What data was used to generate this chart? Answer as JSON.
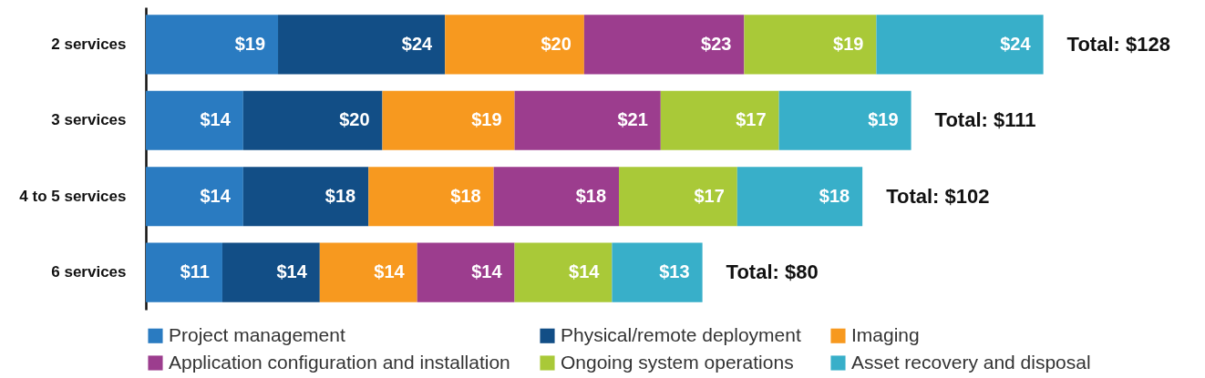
{
  "chart_data": {
    "type": "bar",
    "orientation": "horizontal",
    "stacked": true,
    "legend": "bottom",
    "categories": [
      "2 services",
      "3 services",
      "4 to 5 services",
      "6 services"
    ],
    "series": [
      {
        "name": "Project management",
        "color": "#2a7bc1",
        "values": [
          19,
          14,
          14,
          11
        ],
        "value_labels": [
          "$19",
          "$14",
          "$14",
          "$11"
        ]
      },
      {
        "name": "Physical/remote deployment",
        "color": "#124e86",
        "values": [
          24,
          20,
          18,
          14
        ],
        "value_labels": [
          "$24",
          "$20",
          "$18",
          "$14"
        ]
      },
      {
        "name": "Imaging",
        "color": "#f7991f",
        "values": [
          20,
          19,
          18,
          14
        ],
        "value_labels": [
          "$20",
          "$19",
          "$18",
          "$14"
        ]
      },
      {
        "name": "Application configuration and installation",
        "color": "#9c3d8e",
        "values": [
          23,
          21,
          18,
          14
        ],
        "value_labels": [
          "$23",
          "$21",
          "$18",
          "$14"
        ]
      },
      {
        "name": "Ongoing system operations",
        "color": "#a9c938",
        "values": [
          19,
          17,
          17,
          14
        ],
        "value_labels": [
          "$19",
          "$17",
          "$17",
          "$14"
        ]
      },
      {
        "name": "Asset recovery and disposal",
        "color": "#38afc9",
        "values": [
          24,
          19,
          18,
          13
        ],
        "value_labels": [
          "$24",
          "$19",
          "$18",
          "$13"
        ]
      }
    ],
    "totals": [
      "Total: $128",
      "Total: $111",
      "Total: $102",
      "Total: $80"
    ]
  }
}
